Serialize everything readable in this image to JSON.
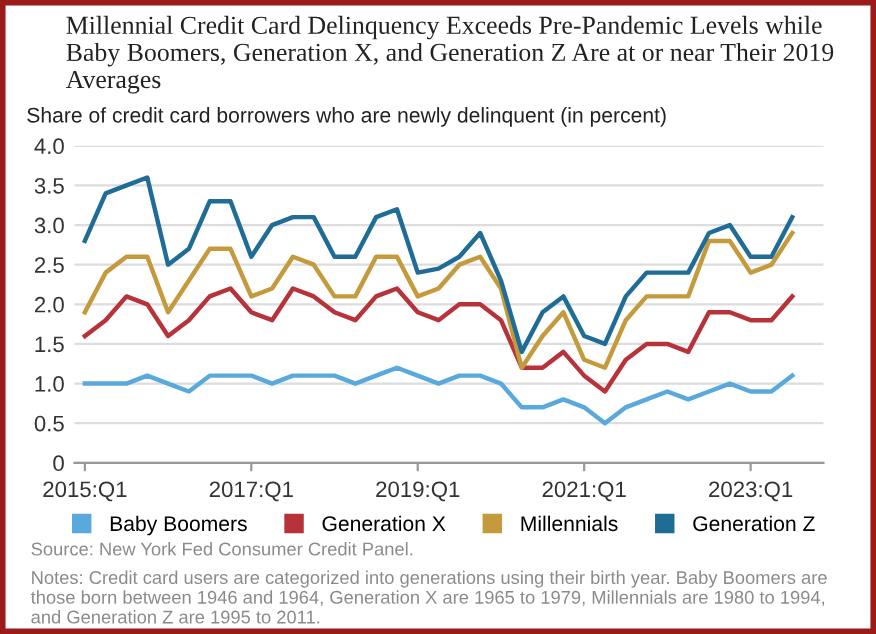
{
  "chart_data": {
    "type": "line",
    "title": "Millennial Credit Card Delinquency Exceeds Pre-Pandemic Levels while Baby Boomers, Generation X, and Generation Z Are at or near Their 2019 Averages",
    "ylabel": "Share of credit card borrowers who are newly delinquent (in percent)",
    "categories": [
      "2015:Q1",
      null,
      null,
      null,
      null,
      null,
      null,
      null,
      "2017:Q1",
      null,
      null,
      null,
      null,
      null,
      null,
      null,
      "2019:Q1",
      null,
      null,
      null,
      null,
      null,
      null,
      null,
      "2021:Q1",
      null,
      null,
      null,
      null,
      null,
      null,
      null,
      "2023:Q1",
      null,
      null
    ],
    "series": [
      {
        "name": "Baby Boomers",
        "color": "#5aa9dc",
        "values": [
          1.0,
          1.0,
          1.0,
          1.1,
          1.0,
          0.9,
          1.1,
          1.1,
          1.1,
          1.0,
          1.1,
          1.1,
          1.1,
          1.0,
          1.1,
          1.2,
          1.1,
          1.0,
          1.1,
          1.1,
          1.0,
          0.7,
          0.7,
          0.8,
          0.7,
          0.5,
          0.7,
          0.8,
          0.9,
          0.8,
          0.9,
          1.0,
          0.9,
          0.9,
          1.1
        ]
      },
      {
        "name": "Generation X",
        "color": "#b8323a",
        "values": [
          1.6,
          1.8,
          2.1,
          2.0,
          1.6,
          1.8,
          2.1,
          2.2,
          1.9,
          1.8,
          2.2,
          2.1,
          1.9,
          1.8,
          2.1,
          2.2,
          1.9,
          1.8,
          2.0,
          2.0,
          1.8,
          1.2,
          1.2,
          1.4,
          1.1,
          0.9,
          1.3,
          1.5,
          1.5,
          1.4,
          1.9,
          1.9,
          1.8,
          1.8,
          2.1
        ]
      },
      {
        "name": "Millennials",
        "color": "#c49a3c",
        "values": [
          1.9,
          2.4,
          2.6,
          2.6,
          1.9,
          2.3,
          2.7,
          2.7,
          2.1,
          2.2,
          2.6,
          2.5,
          2.1,
          2.1,
          2.6,
          2.6,
          2.1,
          2.2,
          2.5,
          2.6,
          2.2,
          1.2,
          1.6,
          1.9,
          1.3,
          1.2,
          1.8,
          2.1,
          2.1,
          2.1,
          2.8,
          2.8,
          2.4,
          2.5,
          2.9
        ]
      },
      {
        "name": "Generation Z",
        "color": "#1f6c96",
        "values": [
          2.8,
          3.4,
          3.5,
          3.6,
          2.5,
          2.7,
          3.3,
          3.3,
          2.6,
          3.0,
          3.1,
          3.1,
          2.6,
          2.6,
          3.1,
          3.2,
          2.4,
          2.45,
          2.6,
          2.9,
          2.3,
          1.4,
          1.9,
          2.1,
          1.6,
          1.5,
          2.1,
          2.4,
          2.4,
          2.4,
          2.9,
          3.0,
          2.6,
          2.6,
          3.1
        ]
      }
    ],
    "ylim": [
      0,
      4
    ],
    "yticks": [
      0,
      0.5,
      {
        "value": 1,
        "label": "1.0"
      },
      1.5,
      {
        "value": 2,
        "label": "2.0"
      },
      2.5,
      {
        "value": 3,
        "label": "3.0"
      },
      3.5,
      {
        "value": 4,
        "label": "4.0"
      }
    ],
    "grid": "y",
    "legend": "bottom",
    "marker": "none",
    "line_style": "solid",
    "annotations": [
      "Source: New York Fed Consumer Credit Panel.",
      "Notes: Credit card users are categorized into generations using their birth year. Baby Boomers are those born between 1946 and 1964, Generation X are 1965 to 1979, Millennials are 1980 to 1994, and Generation Z are 1995 to 2011."
    ]
  }
}
